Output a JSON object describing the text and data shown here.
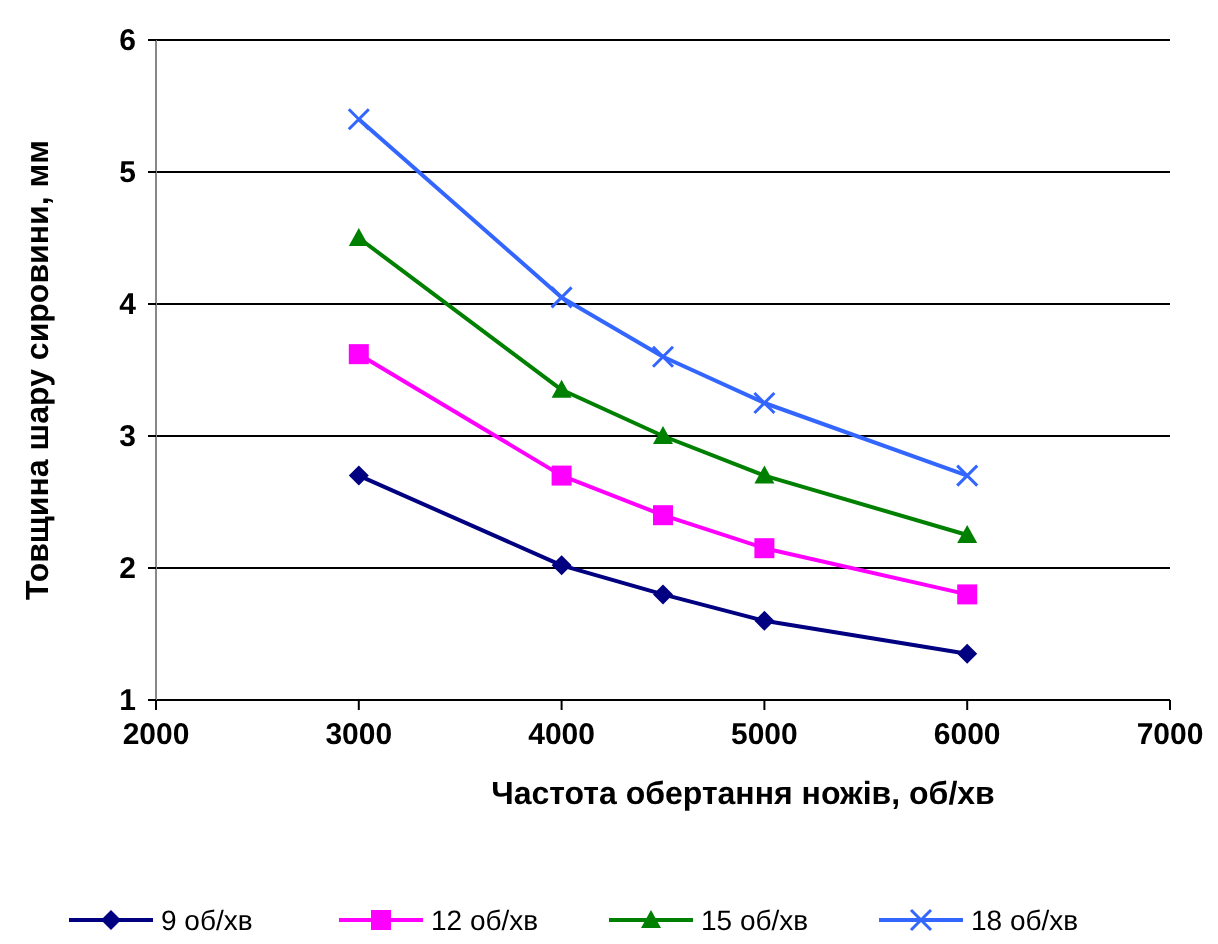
{
  "chart_data": {
    "type": "line",
    "xlabel": "Частота обертання ножів, об/хв",
    "ylabel": "Товщина шару сировини, мм",
    "x": [
      3000,
      4000,
      4500,
      5000,
      6000
    ],
    "xlim": [
      2000,
      7000
    ],
    "xticks": [
      2000,
      3000,
      4000,
      5000,
      6000,
      7000
    ],
    "ylim": [
      1,
      6
    ],
    "yticks": [
      1,
      2,
      3,
      4,
      5,
      6
    ],
    "grid": "y",
    "legend": "bottom",
    "series": [
      {
        "name": "9 об/хв",
        "color": "#000080",
        "marker": "diamond",
        "values": [
          2.7,
          2.02,
          1.8,
          1.6,
          1.35
        ]
      },
      {
        "name": "12 об/хв",
        "color": "#ff00ff",
        "marker": "square",
        "values": [
          3.62,
          2.7,
          2.4,
          2.15,
          1.8
        ]
      },
      {
        "name": "15 об/хв",
        "color": "#008000",
        "marker": "triangle",
        "values": [
          4.5,
          3.35,
          3.0,
          2.7,
          2.25
        ]
      },
      {
        "name": "18 об/хв",
        "color": "#3366ff",
        "marker": "cross",
        "values": [
          5.4,
          4.05,
          3.6,
          3.25,
          2.7
        ]
      }
    ]
  }
}
